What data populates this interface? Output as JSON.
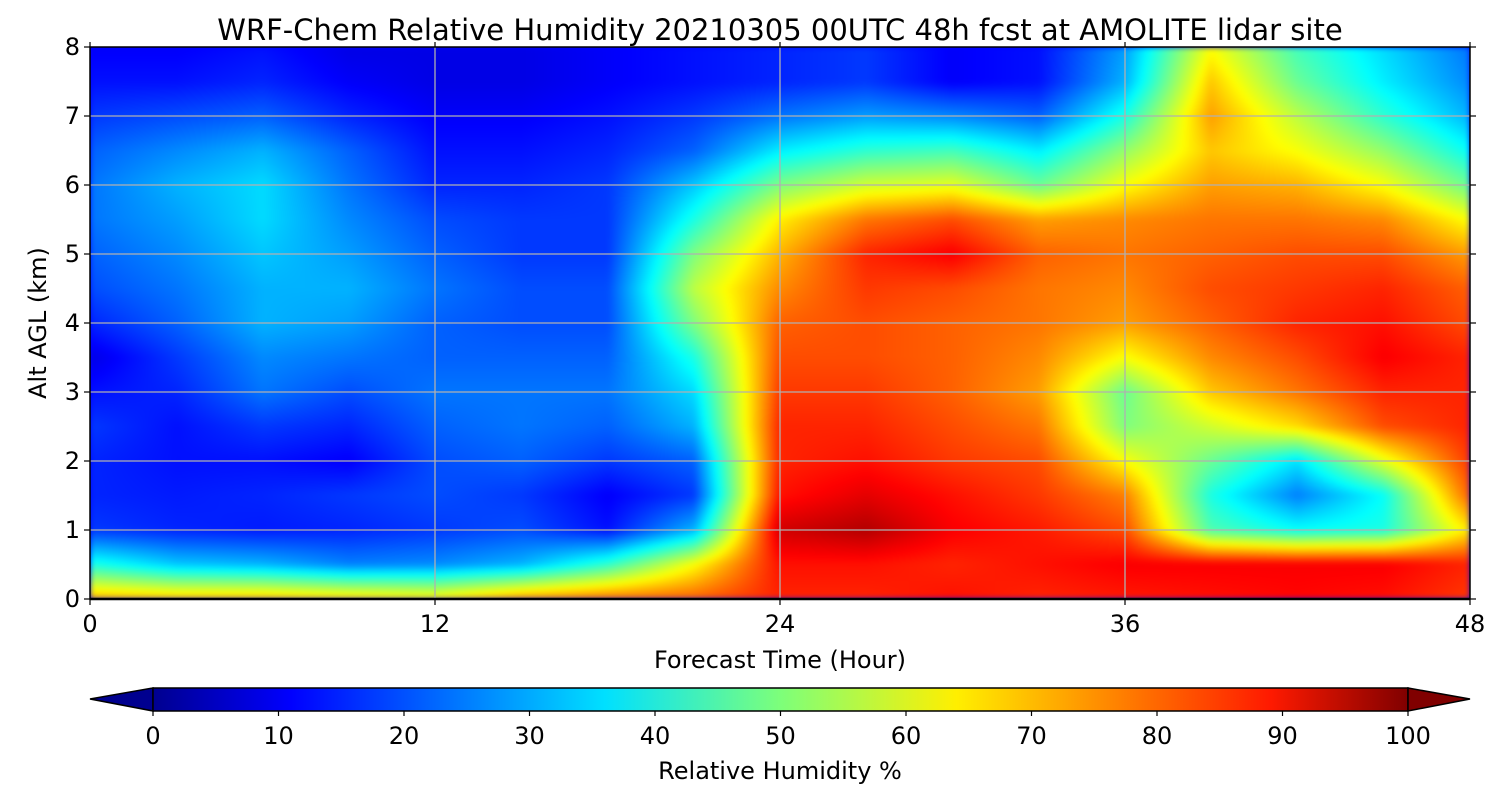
{
  "chart_data": {
    "type": "heatmap",
    "title": "WRF-Chem Relative Humidity 20210305 00UTC 48h fcst at AMOLITE lidar site",
    "xlabel": "Forecast Time (Hour)",
    "ylabel": "Alt AGL (km)",
    "xlim": [
      0,
      48
    ],
    "ylim": [
      0,
      8
    ],
    "x_ticks": [
      "0",
      "12",
      "24",
      "36",
      "48"
    ],
    "y_ticks": [
      "0",
      "1",
      "2",
      "3",
      "4",
      "5",
      "6",
      "7",
      "8"
    ],
    "grid": true,
    "colormap": "jet",
    "colorbar": {
      "label": "Relative Humidity %",
      "range": [
        0,
        100
      ],
      "ticks": [
        "0",
        "10",
        "20",
        "30",
        "40",
        "50",
        "60",
        "70",
        "80",
        "90",
        "100"
      ],
      "extend": "both",
      "orientation": "horizontal"
    },
    "x": [
      0,
      3,
      6,
      9,
      12,
      15,
      18,
      21,
      24,
      27,
      30,
      33,
      36,
      39,
      42,
      45,
      48
    ],
    "y": [
      0,
      0.5,
      1,
      1.5,
      2,
      2.5,
      3,
      3.5,
      4,
      4.5,
      5,
      5.5,
      6,
      6.5,
      7,
      7.5,
      8
    ],
    "z": [
      [
        70,
        68,
        68,
        66,
        64,
        72,
        76,
        78,
        84,
        84,
        86,
        84,
        85,
        86,
        87,
        86,
        82
      ],
      [
        40,
        32,
        30,
        25,
        26,
        30,
        42,
        62,
        86,
        86,
        84,
        86,
        88,
        88,
        88,
        88,
        84
      ],
      [
        18,
        16,
        15,
        16,
        18,
        20,
        14,
        30,
        92,
        95,
        88,
        85,
        80,
        45,
        38,
        40,
        65
      ],
      [
        16,
        15,
        16,
        18,
        20,
        18,
        12,
        18,
        86,
        90,
        86,
        82,
        75,
        40,
        25,
        38,
        78
      ],
      [
        16,
        14,
        14,
        12,
        20,
        22,
        18,
        22,
        84,
        86,
        82,
        80,
        62,
        48,
        35,
        60,
        82
      ],
      [
        18,
        14,
        18,
        16,
        22,
        24,
        22,
        30,
        84,
        84,
        80,
        76,
        50,
        58,
        66,
        80,
        84
      ],
      [
        14,
        16,
        24,
        20,
        24,
        24,
        24,
        34,
        82,
        82,
        78,
        72,
        48,
        68,
        76,
        84,
        84
      ],
      [
        10,
        18,
        26,
        24,
        22,
        22,
        22,
        40,
        80,
        80,
        78,
        74,
        62,
        74,
        80,
        88,
        84
      ],
      [
        16,
        22,
        30,
        28,
        22,
        20,
        20,
        50,
        78,
        80,
        78,
        76,
        72,
        78,
        84,
        86,
        80
      ],
      [
        20,
        24,
        30,
        30,
        24,
        20,
        20,
        56,
        74,
        82,
        80,
        76,
        74,
        80,
        82,
        84,
        78
      ],
      [
        22,
        26,
        32,
        28,
        22,
        18,
        18,
        50,
        70,
        84,
        88,
        78,
        76,
        78,
        80,
        80,
        72
      ],
      [
        24,
        28,
        34,
        26,
        20,
        18,
        18,
        40,
        64,
        76,
        80,
        72,
        74,
        76,
        76,
        74,
        62
      ],
      [
        24,
        30,
        34,
        24,
        16,
        16,
        18,
        32,
        50,
        58,
        60,
        48,
        62,
        72,
        70,
        62,
        48
      ],
      [
        22,
        26,
        30,
        22,
        14,
        14,
        16,
        22,
        36,
        42,
        44,
        36,
        52,
        68,
        62,
        52,
        38
      ],
      [
        18,
        20,
        22,
        16,
        12,
        12,
        14,
        18,
        24,
        28,
        26,
        22,
        40,
        72,
        56,
        42,
        30
      ],
      [
        14,
        14,
        16,
        12,
        10,
        10,
        12,
        14,
        16,
        18,
        12,
        14,
        30,
        68,
        48,
        36,
        26
      ],
      [
        12,
        12,
        14,
        10,
        10,
        10,
        12,
        14,
        16,
        18,
        12,
        14,
        28,
        62,
        44,
        34,
        24
      ]
    ]
  }
}
